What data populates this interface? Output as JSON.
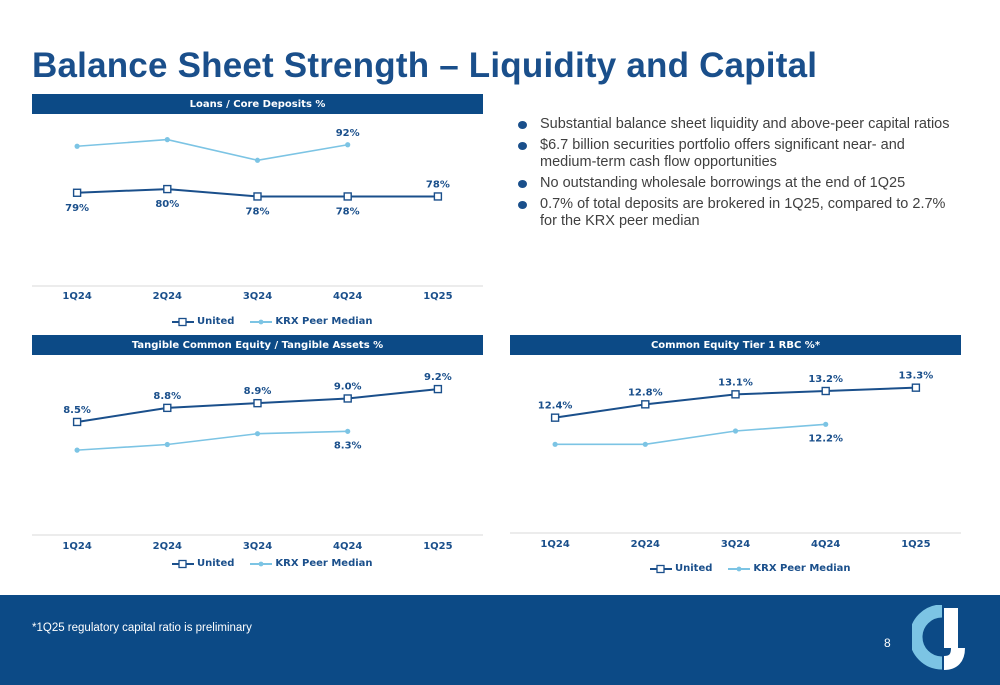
{
  "page": {
    "title": "Balance Sheet Strength – Liquidity and Capital",
    "bullets": [
      "Substantial balance sheet liquidity and above-peer capital ratios",
      "$6.7 billion securities portfolio offers significant near- and medium-term cash flow opportunities",
      "No outstanding wholesale borrowings at the end of 1Q25",
      "0.7% of total deposits are brokered in 1Q25, compared to 2.7% for the KRX peer median"
    ],
    "footnote": "*1Q25 regulatory capital ratio is preliminary",
    "page_number": "8"
  },
  "colors": {
    "united": "#1a4f8b",
    "peer": "#7cc4e4",
    "header_bg": "#0c4a86",
    "title": "#1a4f8b"
  },
  "chart_data": [
    {
      "type": "line",
      "title": "Loans / Core Deposits %",
      "categories": [
        "1Q24",
        "2Q24",
        "3Q24",
        "4Q24",
        "1Q25"
      ],
      "series": [
        {
          "name": "United",
          "values": [
            79,
            80,
            78,
            78,
            78
          ],
          "labels": [
            "79%",
            "80%",
            "78%",
            "78%",
            "78%"
          ]
        },
        {
          "name": "KRX Peer Median",
          "values": [
            91.6,
            93.4,
            87.8,
            92,
            null
          ],
          "labels": [
            null,
            null,
            null,
            "92%",
            null
          ]
        }
      ],
      "legend": [
        "United",
        "KRX Peer Median"
      ],
      "ylim": [
        70,
        96
      ],
      "grid": false,
      "legend_position": "bottom"
    },
    {
      "type": "line",
      "title": "Tangible Common Equity / Tangible Assets %",
      "categories": [
        "1Q24",
        "2Q24",
        "3Q24",
        "4Q24",
        "1Q25"
      ],
      "series": [
        {
          "name": "United",
          "values": [
            8.5,
            8.8,
            8.9,
            9.0,
            9.2
          ],
          "labels": [
            "8.5%",
            "8.8%",
            "8.9%",
            "9.0%",
            "9.2%"
          ]
        },
        {
          "name": "KRX Peer Median",
          "values": [
            7.9,
            8.02,
            8.25,
            8.3,
            null
          ],
          "labels": [
            null,
            null,
            null,
            "8.3%",
            null
          ]
        }
      ],
      "legend": [
        "United",
        "KRX Peer Median"
      ],
      "ylim": [
        7.2,
        9.5
      ],
      "grid": false,
      "legend_position": "bottom"
    },
    {
      "type": "line",
      "title": "Common Equity Tier 1 RBC %*",
      "categories": [
        "1Q24",
        "2Q24",
        "3Q24",
        "4Q24",
        "1Q25"
      ],
      "series": [
        {
          "name": "United",
          "values": [
            12.4,
            12.8,
            13.1,
            13.2,
            13.3
          ],
          "labels": [
            "12.4%",
            "12.8%",
            "13.1%",
            "13.2%",
            "13.3%"
          ]
        },
        {
          "name": "KRX Peer Median",
          "values": [
            11.6,
            11.6,
            12.0,
            12.2,
            null
          ],
          "labels": [
            null,
            null,
            null,
            "12.2%",
            null
          ]
        }
      ],
      "legend": [
        "United",
        "KRX Peer Median"
      ],
      "ylim": [
        10.5,
        13.8
      ],
      "grid": false,
      "legend_position": "bottom"
    }
  ]
}
